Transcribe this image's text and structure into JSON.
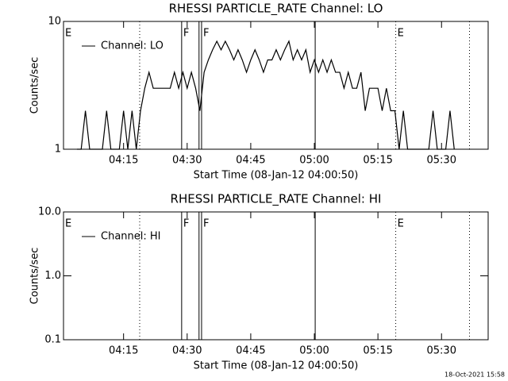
{
  "chart_data": [
    {
      "type": "line",
      "title": "RHESSI PARTICLE_RATE Channel: LO",
      "x_label": "Start Time (08-Jan-12 04:00:50)",
      "y_label": "Counts/sec",
      "log_y": true,
      "ylim": [
        1,
        10
      ],
      "yticks": [
        1,
        10
      ],
      "xlim": [
        0.83,
        101
      ],
      "xticks": [
        {
          "value": 15,
          "label": "04:15"
        },
        {
          "value": 30,
          "label": "04:30"
        },
        {
          "value": 45,
          "label": "04:45"
        },
        {
          "value": 60,
          "label": "05:00"
        },
        {
          "value": 75,
          "label": "05:15"
        },
        {
          "value": 90,
          "label": "05:30"
        }
      ],
      "vlines": [
        {
          "x": 18.8,
          "style": "dotted"
        },
        {
          "x": 28.7,
          "style": "solid"
        },
        {
          "x": 32.8,
          "style": "solid"
        },
        {
          "x": 33.4,
          "style": "solid"
        },
        {
          "x": 60.2,
          "style": "solid"
        },
        {
          "x": 79.2,
          "style": "dotted"
        },
        {
          "x": 96.6,
          "style": "dotted"
        }
      ],
      "flags": [
        {
          "text": "E",
          "x": 0.83
        },
        {
          "text": "F",
          "x": 28.7
        },
        {
          "text": "F",
          "x": 33.4
        },
        {
          "text": "E",
          "x": 79.2
        }
      ],
      "legend": "upper left",
      "series": [
        {
          "name": "Channel: LO",
          "color": "#000000",
          "x": [
            4,
            5,
            6,
            7,
            8,
            9,
            10,
            11,
            12,
            13,
            14,
            15,
            16,
            17,
            18,
            19,
            20,
            21,
            22,
            23,
            24,
            25,
            26,
            27,
            28,
            29,
            30,
            31,
            32,
            33,
            34,
            35,
            36,
            37,
            38,
            39,
            40,
            41,
            42,
            43,
            44,
            45,
            46,
            47,
            48,
            49,
            50,
            51,
            52,
            53,
            54,
            55,
            56,
            57,
            58,
            59,
            60,
            61,
            62,
            63,
            64,
            65,
            66,
            67,
            68,
            69,
            70,
            71,
            72,
            73,
            74,
            75,
            76,
            77,
            78,
            79,
            80,
            81,
            82,
            83,
            84,
            85,
            86,
            87,
            88,
            89,
            90,
            91,
            92,
            93
          ],
          "values": [
            1,
            1,
            2,
            1,
            1,
            1,
            1,
            2,
            1,
            1,
            1,
            2,
            1,
            2,
            1,
            2,
            3,
            4,
            3,
            3,
            3,
            3,
            3,
            4,
            3,
            4,
            3,
            4,
            3,
            2,
            4,
            5,
            6,
            7,
            6,
            7,
            6,
            5,
            6,
            5,
            4,
            5,
            6,
            5,
            4,
            5,
            5,
            6,
            5,
            6,
            7,
            5,
            6,
            5,
            6,
            4,
            5,
            4,
            5,
            4,
            5,
            4,
            4,
            3,
            4,
            3,
            3,
            4,
            2,
            3,
            3,
            3,
            2,
            3,
            2,
            2,
            1,
            2,
            1,
            1,
            1,
            1,
            1,
            1,
            2,
            1,
            1,
            1,
            2,
            1
          ]
        }
      ]
    },
    {
      "type": "line",
      "title": "RHESSI PARTICLE_RATE Channel: HI",
      "x_label": "Start Time (08-Jan-12 04:00:50)",
      "y_label": "Counts/sec",
      "log_y": true,
      "ylim": [
        0.1,
        10
      ],
      "yticks": [
        0.1,
        {
          "value": 1,
          "label": "1.0"
        },
        {
          "value": 10,
          "label": "10.0"
        }
      ],
      "xlim": [
        0.83,
        101
      ],
      "xticks": [
        {
          "value": 15,
          "label": "04:15"
        },
        {
          "value": 30,
          "label": "04:30"
        },
        {
          "value": 45,
          "label": "04:45"
        },
        {
          "value": 60,
          "label": "05:00"
        },
        {
          "value": 75,
          "label": "05:15"
        },
        {
          "value": 90,
          "label": "05:30"
        }
      ],
      "vlines": [
        {
          "x": 18.8,
          "style": "dotted"
        },
        {
          "x": 28.7,
          "style": "solid"
        },
        {
          "x": 32.8,
          "style": "solid"
        },
        {
          "x": 33.4,
          "style": "solid"
        },
        {
          "x": 60.2,
          "style": "solid"
        },
        {
          "x": 79.2,
          "style": "dotted"
        },
        {
          "x": 96.6,
          "style": "dotted"
        }
      ],
      "flags": [
        {
          "text": "E",
          "x": 0.83
        },
        {
          "text": "F",
          "x": 28.7
        },
        {
          "text": "F",
          "x": 33.4
        },
        {
          "text": "E",
          "x": 79.2
        }
      ],
      "legend": "upper left",
      "series": [
        {
          "name": "Channel: HI",
          "color": "#000000",
          "x": [],
          "values": []
        }
      ]
    }
  ],
  "footer": "18-Oct-2021 15:58"
}
